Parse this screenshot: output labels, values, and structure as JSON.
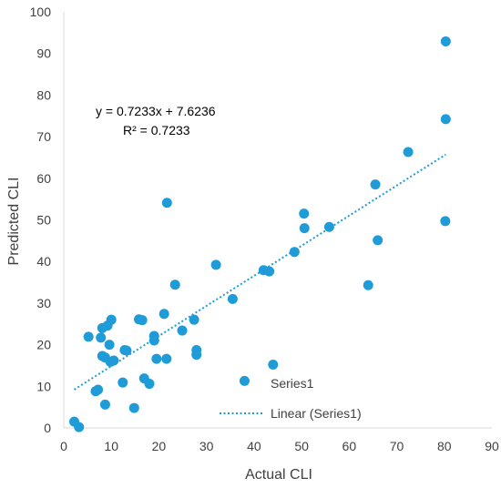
{
  "chart_data": {
    "type": "scatter",
    "xlabel": "Actual CLI",
    "ylabel": "Predicted CLI",
    "xlim": [
      0,
      90
    ],
    "ylim": [
      0,
      100
    ],
    "x_ticks": [
      0,
      10,
      20,
      30,
      40,
      50,
      60,
      70,
      80,
      90
    ],
    "y_ticks": [
      0,
      10,
      20,
      30,
      40,
      50,
      60,
      70,
      80,
      90,
      100
    ],
    "grid": false,
    "colors": {
      "points": "#1f9bd7",
      "trendline": "#1f9bd7",
      "text": "#404040",
      "axis": "#d9d9d9"
    },
    "trendline": {
      "equation": "y = 0.7233x + 7.6236",
      "r_squared": "R² = 0.7233",
      "slope": 0.7233,
      "intercept": 7.6236,
      "x_range": [
        2.2,
        80.3
      ]
    },
    "series": [
      {
        "name": "Series1",
        "points": [
          [
            2.2,
            1.5
          ],
          [
            3.2,
            0.2
          ],
          [
            5.2,
            21.9
          ],
          [
            6.7,
            8.8
          ],
          [
            7.2,
            9.2
          ],
          [
            7.8,
            21.7
          ],
          [
            8.1,
            17.3
          ],
          [
            8.1,
            24.0
          ],
          [
            8.7,
            16.9
          ],
          [
            8.7,
            5.6
          ],
          [
            9.2,
            24.6
          ],
          [
            9.6,
            20.0
          ],
          [
            9.8,
            15.9
          ],
          [
            10.0,
            26.0
          ],
          [
            10.5,
            16.2
          ],
          [
            12.4,
            10.9
          ],
          [
            12.8,
            18.7
          ],
          [
            13.2,
            18.6
          ],
          [
            14.8,
            4.8
          ],
          [
            15.8,
            26.1
          ],
          [
            16.5,
            25.9
          ],
          [
            16.9,
            11.9
          ],
          [
            18.0,
            10.6
          ],
          [
            19.0,
            22.1
          ],
          [
            19.0,
            21.0
          ],
          [
            19.5,
            16.6
          ],
          [
            21.1,
            27.4
          ],
          [
            21.6,
            16.6
          ],
          [
            21.7,
            54.1
          ],
          [
            23.4,
            34.4
          ],
          [
            24.9,
            23.4
          ],
          [
            27.4,
            26.0
          ],
          [
            27.9,
            17.6
          ],
          [
            27.9,
            18.7
          ],
          [
            32.0,
            39.2
          ],
          [
            35.5,
            31.0
          ],
          [
            38.0,
            11.3
          ],
          [
            42.0,
            37.9
          ],
          [
            43.2,
            37.6
          ],
          [
            44.0,
            15.2
          ],
          [
            48.5,
            42.3
          ],
          [
            50.5,
            51.5
          ],
          [
            50.6,
            48.0
          ],
          [
            55.8,
            48.3
          ],
          [
            64.0,
            34.3
          ],
          [
            65.5,
            58.5
          ],
          [
            66.0,
            45.1
          ],
          [
            72.4,
            66.3
          ],
          [
            80.2,
            49.7
          ],
          [
            80.3,
            74.2
          ],
          [
            80.3,
            92.9
          ]
        ]
      }
    ],
    "legend": {
      "placement": "bottom-right",
      "entries": [
        {
          "label": "Series1",
          "kind": "marker"
        },
        {
          "label": "Linear (Series1)",
          "kind": "dotted-line"
        }
      ]
    }
  }
}
